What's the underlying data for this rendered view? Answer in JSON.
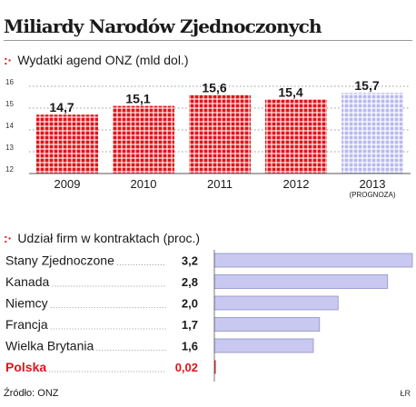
{
  "title": "Miliardy Narodów Zjednoczonych",
  "source": "Źródło: ONZ",
  "credit": "ŁR",
  "colors": {
    "accent": "#e0141a",
    "forecast": "#b9b9ee",
    "hbar": "#c8c8f0",
    "highlight": "#e0141a"
  },
  "chart_data": [
    {
      "type": "bar",
      "title": "Wydatki agend ONZ (mld dol.)",
      "categories": [
        "2009",
        "2010",
        "2011",
        "2012",
        "2013"
      ],
      "category_notes": [
        "",
        "",
        "",
        "",
        "(PROGNOZA)"
      ],
      "values": [
        14.7,
        15.1,
        15.6,
        15.4,
        15.7
      ],
      "value_labels": [
        "14,7",
        "15,1",
        "15,6",
        "15,4",
        "15,7"
      ],
      "forecast_index": 4,
      "ylim": [
        12,
        16
      ],
      "yticks": [
        12,
        13,
        14,
        15,
        16
      ],
      "grid": true
    },
    {
      "type": "bar",
      "orientation": "horizontal",
      "title": "Udział firm w kontraktach (proc.)",
      "categories": [
        "Stany Zjednoczone",
        "Kanada",
        "Niemcy",
        "Francja",
        "Wielka Brytania",
        "Polska"
      ],
      "values": [
        3.2,
        2.8,
        2.0,
        1.7,
        1.6,
        0.02
      ],
      "value_labels": [
        "3,2",
        "2,8",
        "2,0",
        "1,7",
        "1,6",
        "0,02"
      ],
      "highlight_index": 5
    }
  ]
}
